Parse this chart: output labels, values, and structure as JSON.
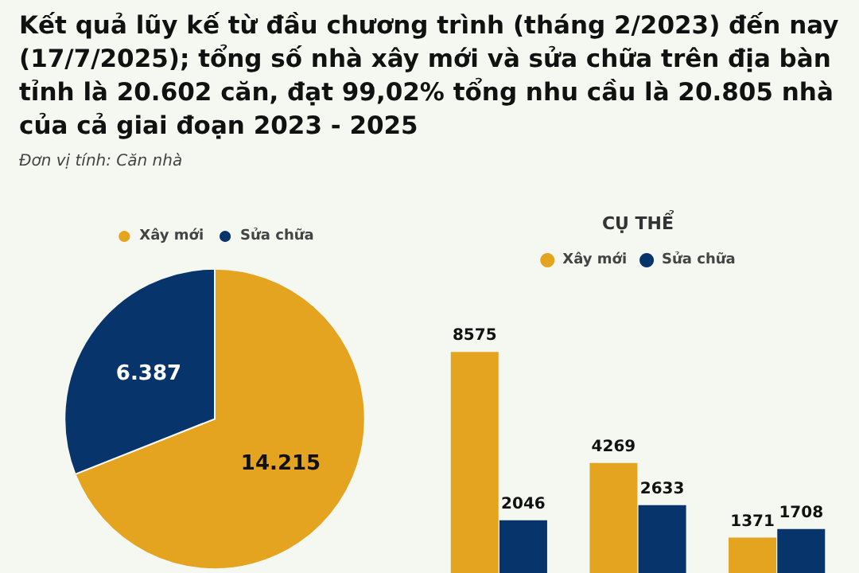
{
  "chart_data": [
    {
      "type": "pie",
      "title": "Kết quả lũy kế từ đầu chương trình (tháng 2/2023) đến nay (17/7/2025); tổng số nhà xây mới và sửa chữa trên địa bàn tỉnh là 20.602 căn, đạt 99,02% tổng nhu cầu là 20.805 nhà của cả giai đoạn 2023 - 2025",
      "annotations": [
        "Đơn vị tính: Căn nhà"
      ],
      "categories": [
        "Xây mới",
        "Sửa chữa"
      ],
      "values": [
        14215,
        6387
      ],
      "value_labels": [
        "14.215",
        "6.387"
      ],
      "colors": [
        "#e5a41f",
        "#07346b"
      ],
      "legend": "top"
    },
    {
      "type": "bar",
      "title": "CỤ THỂ",
      "categories": [
        null,
        null,
        null
      ],
      "series": [
        {
          "name": "Xây mới",
          "color": "#e5a41f",
          "values": [
            8575,
            4269,
            1371
          ]
        },
        {
          "name": "Sửa chữa",
          "color": "#07346b",
          "values": [
            2046,
            2633,
            1708
          ]
        }
      ],
      "data_labels": true,
      "legend": "top"
    }
  ]
}
